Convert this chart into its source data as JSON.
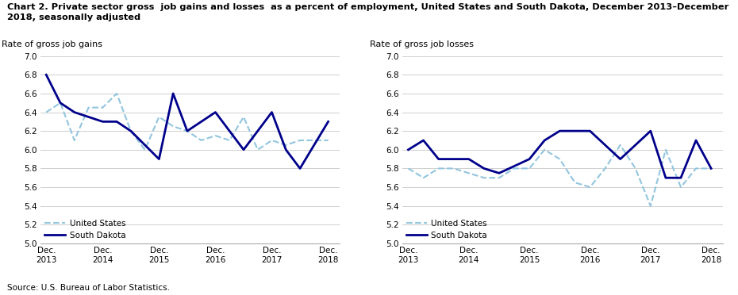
{
  "title": "Chart 2. Private sector gross  job gains and losses  as a percent of employment, United States and South Dakota, December 2013–December\n2018, seasonally adjusted",
  "left_ylabel": "Rate of gross job gains",
  "right_ylabel": "Rate of gross job losses",
  "left_sd_x": [
    0,
    0.5,
    1,
    2,
    2.5,
    3,
    4,
    4.5,
    5,
    6,
    7,
    8,
    8.5,
    9,
    10
  ],
  "left_sd_y": [
    6.8,
    6.5,
    6.4,
    6.3,
    6.3,
    6.2,
    5.9,
    6.6,
    6.2,
    6.4,
    6.0,
    6.4,
    6.0,
    5.8,
    6.3
  ],
  "left_us_x": [
    0,
    0.5,
    1,
    1.5,
    2,
    2.5,
    3,
    3.5,
    4,
    4.5,
    5,
    5.5,
    6,
    6.5,
    7,
    7.5,
    8,
    8.5,
    9,
    10
  ],
  "left_us_y": [
    6.4,
    6.5,
    6.1,
    6.45,
    6.45,
    6.6,
    6.2,
    6.0,
    6.35,
    6.25,
    6.2,
    6.1,
    6.15,
    6.1,
    6.35,
    6.0,
    6.1,
    6.05,
    6.1,
    6.1
  ],
  "right_sd_x": [
    0,
    0.5,
    1,
    2,
    2.5,
    3,
    4,
    4.5,
    5,
    6,
    7,
    8,
    8.5,
    9,
    9.5,
    10
  ],
  "right_sd_y": [
    6.0,
    6.1,
    5.9,
    5.9,
    5.8,
    5.75,
    5.9,
    6.1,
    6.2,
    6.2,
    5.9,
    6.2,
    5.7,
    5.7,
    6.1,
    5.8
  ],
  "right_us_x": [
    0,
    0.5,
    1,
    1.5,
    2,
    2.5,
    3,
    3.5,
    4,
    4.5,
    5,
    5.5,
    6,
    6.5,
    7,
    7.5,
    8,
    8.5,
    9,
    9.5,
    10
  ],
  "right_us_y": [
    5.8,
    5.7,
    5.8,
    5.8,
    5.75,
    5.7,
    5.7,
    5.8,
    5.8,
    6.0,
    5.9,
    5.65,
    5.6,
    5.8,
    6.05,
    5.8,
    5.4,
    6.0,
    5.6,
    5.8,
    5.8
  ],
  "x_labels": [
    "Dec.\n2013",
    "Dec.\n2014",
    "Dec.\n2015",
    "Dec.\n2016",
    "Dec.\n2017",
    "Dec.\n2018"
  ],
  "x_positions": [
    0,
    2,
    4,
    6,
    8,
    10
  ],
  "ylim": [
    5.0,
    7.0
  ],
  "yticks": [
    5.0,
    5.2,
    5.4,
    5.6,
    5.8,
    6.0,
    6.2,
    6.4,
    6.6,
    6.8,
    7.0
  ],
  "us_color": "#92C5DE",
  "sd_color": "#00008B",
  "source": "Source: U.S. Bureau of Labor Statistics.",
  "bg_color": "#ffffff",
  "grid_color": "#c8c8c8"
}
